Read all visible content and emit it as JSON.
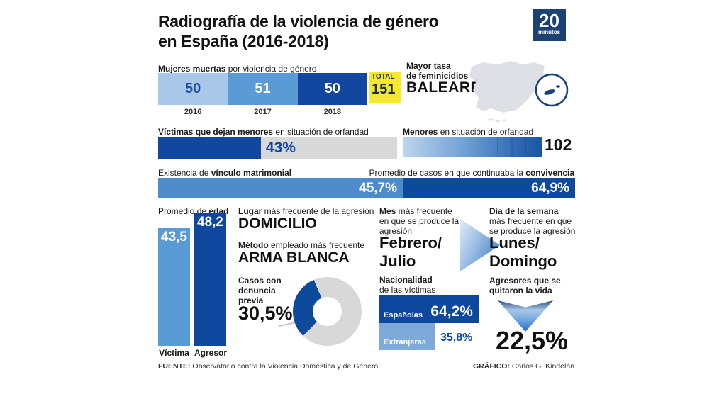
{
  "header": {
    "title_line1": "Radiografía de la violencia de género",
    "title_line2": "en España (2016-2018)",
    "logo": {
      "number": "20",
      "word": "minutos"
    }
  },
  "colors": {
    "navy": "#0E479E",
    "medium_blue": "#5B9BD5",
    "light_blue": "#A9C7E8",
    "pale_blue": "#7FA9D8",
    "track_gray": "#D8D8D8",
    "total_yellow": "#F6E72F"
  },
  "deaths": {
    "label_b": "Mujeres muertas",
    "label_r": " por violencia de género",
    "segments": [
      {
        "value": "50",
        "year": "2016"
      },
      {
        "value": "51",
        "year": "2017"
      },
      {
        "value": "50",
        "year": "2018"
      }
    ],
    "total_label": "TOTAL",
    "total_value": "151"
  },
  "feminicide_rate": {
    "label_line1": "Mayor tasa",
    "label_line2": "de feminicidios",
    "region": "BALEARES"
  },
  "orphans_pct": {
    "label_b": "Víctimas que dejan menores",
    "label_r": " en situación de orfandad",
    "value": "43%",
    "value_num": 43
  },
  "orphans_count": {
    "label_b": "Menores",
    "label_r": " en situación de orfandad",
    "value": "102"
  },
  "marital": {
    "label_r": "Existencia de ",
    "label_b": "vínculo matrimonial",
    "value": "45,7%"
  },
  "cohabitation": {
    "label_r": "Promedio de casos en que continuaba la ",
    "label_b": "convivencia",
    "value": "64,9%"
  },
  "avg_age": {
    "label_r": "Promedio de ",
    "label_b": "edad",
    "bars": [
      {
        "name": "Víctima",
        "value": "43,5"
      },
      {
        "name": "Agresor",
        "value": "48,2"
      }
    ]
  },
  "place": {
    "label_b": "Lugar",
    "label_r": " más frecuente de la agresión",
    "value": "DOMICILIO"
  },
  "method": {
    "label_b": "Método",
    "label_r": " empleado más frecuente",
    "value": "ARMA BLANCA"
  },
  "prior_report": {
    "label": "Casos con denuncia previa",
    "value": "30,5%",
    "value_num": 30.5
  },
  "month": {
    "label_b": "Mes",
    "label_r": " más frecuente en que se produce la agresión",
    "value": "Febrero/\nJulio"
  },
  "weekday": {
    "label_b": "Día de la semana",
    "label_r": " más frecuente en que se produce la agresión",
    "value": "Lunes/\nDomingo"
  },
  "nationality": {
    "label_b": "Nacionalidad",
    "label_r": "de las víctimas",
    "rows": [
      {
        "name": "Españolas",
        "value": "64,2%",
        "pct": 64.2
      },
      {
        "name": "Extranjeras",
        "value": "35,8%",
        "pct": 35.8
      }
    ]
  },
  "suicide": {
    "label": "Agresores que se quitaron la vida",
    "value": "22,5%"
  },
  "footer": {
    "source_b": "FUENTE:",
    "source_r": " Observatorio contra la Violencia Doméstica y de Género",
    "credit_b": "GRÁFICO:",
    "credit_r": " Carlos G. Kindelán"
  },
  "chart_data": [
    {
      "type": "bar",
      "title": "Mujeres muertas por violencia de género",
      "categories": [
        "2016",
        "2017",
        "2018"
      ],
      "values": [
        50,
        51,
        50
      ],
      "total": 151
    },
    {
      "type": "bar",
      "title": "Víctimas que dejan menores en situación de orfandad",
      "categories": [
        "Víctimas que dejan menores"
      ],
      "values": [
        43
      ],
      "unit": "%",
      "xlim": [
        0,
        100
      ]
    },
    {
      "type": "bar",
      "title": "Menores en situación de orfandad",
      "categories": [
        "Menores"
      ],
      "values": [
        102
      ]
    },
    {
      "type": "bar",
      "title": "Existencia de vínculo matrimonial / convivencia",
      "categories": [
        "Vínculo matrimonial",
        "Continuaba la convivencia"
      ],
      "values": [
        45.7,
        64.9
      ],
      "unit": "%"
    },
    {
      "type": "bar",
      "title": "Promedio de edad",
      "categories": [
        "Víctima",
        "Agresor"
      ],
      "values": [
        43.5,
        48.2
      ]
    },
    {
      "type": "pie",
      "title": "Casos con denuncia previa",
      "categories": [
        "Con denuncia previa",
        "Sin denuncia previa"
      ],
      "values": [
        30.5,
        69.5
      ],
      "unit": "%"
    },
    {
      "type": "bar",
      "title": "Nacionalidad de las víctimas",
      "categories": [
        "Españolas",
        "Extranjeras"
      ],
      "values": [
        64.2,
        35.8
      ],
      "unit": "%"
    },
    {
      "type": "other",
      "title": "Agresores que se quitaron la vida",
      "values": [
        22.5
      ],
      "unit": "%"
    }
  ]
}
